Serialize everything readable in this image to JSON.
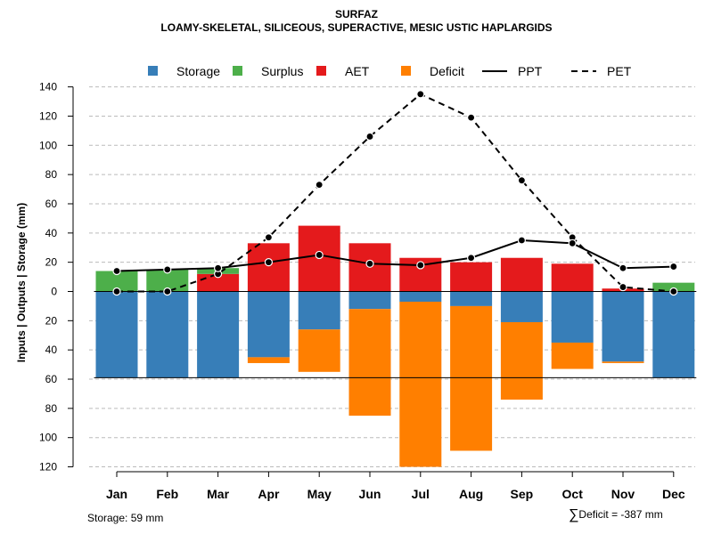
{
  "chart_data": {
    "type": "bar",
    "title": "SURFAZ",
    "subtitle": "LOAMY-SKELETAL, SILICEOUS, SUPERACTIVE, MESIC USTIC HAPLARGIDS",
    "ylabel": "Inputs | Outputs | Storage    (mm)",
    "xlabel": "",
    "categories": [
      "Jan",
      "Feb",
      "Mar",
      "Apr",
      "May",
      "Jun",
      "Jul",
      "Aug",
      "Sep",
      "Oct",
      "Nov",
      "Dec"
    ],
    "ylim": [
      -120,
      140
    ],
    "y_ticks": [
      140,
      120,
      100,
      80,
      60,
      40,
      20,
      0,
      -20,
      -40,
      -60,
      -80,
      -100,
      -120
    ],
    "y_tick_labels": [
      "140",
      "120",
      "100",
      "80",
      "60",
      "40",
      "20",
      "0",
      "20",
      "40",
      "60",
      "80",
      "100",
      "120"
    ],
    "grid": true,
    "legend_position": "top",
    "legend": [
      {
        "name": "Storage",
        "kind": "box",
        "color": "#377EB8"
      },
      {
        "name": "Surplus",
        "kind": "box",
        "color": "#4DAF4A"
      },
      {
        "name": "AET",
        "kind": "box",
        "color": "#E41A1C"
      },
      {
        "name": "Deficit",
        "kind": "box",
        "color": "#FF7F00"
      },
      {
        "name": "PPT",
        "kind": "solid"
      },
      {
        "name": "PET",
        "kind": "dashed"
      }
    ],
    "series": [
      {
        "name": "Storage",
        "values": [
          -59,
          -59,
          -59,
          -45,
          -26,
          -12,
          -7,
          -10,
          -21,
          -35,
          -48,
          -59
        ]
      },
      {
        "name": "Surplus",
        "values": [
          14,
          15,
          4,
          0,
          0,
          0,
          0,
          0,
          0,
          0,
          0,
          6
        ]
      },
      {
        "name": "AET",
        "values": [
          0,
          0,
          12,
          33,
          45,
          33,
          23,
          20,
          23,
          19,
          2,
          0
        ]
      },
      {
        "name": "Deficit",
        "values": [
          0,
          0,
          0,
          -4,
          -29,
          -73,
          -113,
          -99,
          -53,
          -18,
          -1,
          0
        ]
      },
      {
        "name": "PPT",
        "values": [
          14,
          15,
          16,
          20,
          25,
          19,
          18,
          23,
          35,
          33,
          16,
          17
        ]
      },
      {
        "name": "PET",
        "values": [
          0,
          0,
          12,
          37,
          73,
          106,
          135,
          119,
          76,
          37,
          3,
          0
        ]
      }
    ],
    "storage_capacity": -59,
    "colors": {
      "storage": "#377EB8",
      "surplus": "#4DAF4A",
      "aet": "#E41A1C",
      "deficit": "#FF7F00",
      "grid": "#BBBBBB"
    }
  },
  "footer": {
    "storage_label": "Storage: 59 mm",
    "sigma": "∑",
    "deficit_label": "Deficit = -387 mm"
  }
}
